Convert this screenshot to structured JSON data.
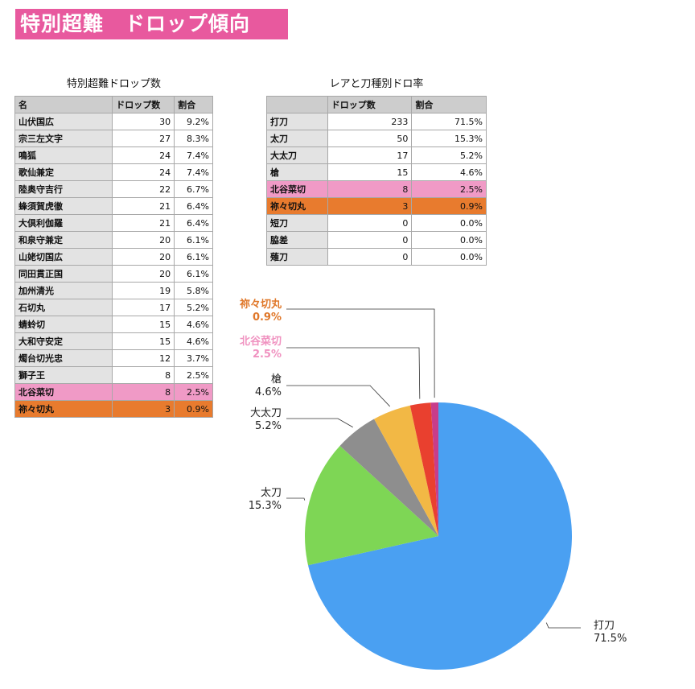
{
  "title": "特別超難　ドロップ傾向",
  "table1": {
    "caption": "特別超難ドロップ数",
    "headers": [
      "名",
      "ドロップ数",
      "割合"
    ],
    "rows": [
      {
        "name": "山伏国広",
        "count": "30",
        "pct": "9.2%"
      },
      {
        "name": "宗三左文字",
        "count": "27",
        "pct": "8.3%"
      },
      {
        "name": "鳴狐",
        "count": "24",
        "pct": "7.4%"
      },
      {
        "name": "歌仙兼定",
        "count": "24",
        "pct": "7.4%"
      },
      {
        "name": "陸奥守吉行",
        "count": "22",
        "pct": "6.7%"
      },
      {
        "name": "蜂須賀虎徹",
        "count": "21",
        "pct": "6.4%"
      },
      {
        "name": "大倶利伽羅",
        "count": "21",
        "pct": "6.4%"
      },
      {
        "name": "和泉守兼定",
        "count": "20",
        "pct": "6.1%"
      },
      {
        "name": "山姥切国広",
        "count": "20",
        "pct": "6.1%"
      },
      {
        "name": "同田貫正国",
        "count": "20",
        "pct": "6.1%"
      },
      {
        "name": "加州清光",
        "count": "19",
        "pct": "5.8%"
      },
      {
        "name": "石切丸",
        "count": "17",
        "pct": "5.2%"
      },
      {
        "name": "蜻蛉切",
        "count": "15",
        "pct": "4.6%"
      },
      {
        "name": "大和守安定",
        "count": "15",
        "pct": "4.6%"
      },
      {
        "name": "燭台切光忠",
        "count": "12",
        "pct": "3.7%"
      },
      {
        "name": "獅子王",
        "count": "8",
        "pct": "2.5%"
      },
      {
        "name": "北谷菜切",
        "count": "8",
        "pct": "2.5%",
        "highlight": "pink"
      },
      {
        "name": "祢々切丸",
        "count": "3",
        "pct": "0.9%",
        "highlight": "orange"
      }
    ]
  },
  "table2": {
    "caption": "レアと刀種別ドロ率",
    "headers": [
      "",
      "ドロップ数",
      "割合"
    ],
    "rows": [
      {
        "name": "打刀",
        "count": "233",
        "pct": "71.5%"
      },
      {
        "name": "太刀",
        "count": "50",
        "pct": "15.3%"
      },
      {
        "name": "大太刀",
        "count": "17",
        "pct": "5.2%"
      },
      {
        "name": "槍",
        "count": "15",
        "pct": "4.6%"
      },
      {
        "name": "北谷菜切",
        "count": "8",
        "pct": "2.5%",
        "highlight": "pink"
      },
      {
        "name": "祢々切丸",
        "count": "3",
        "pct": "0.9%",
        "highlight": "orange"
      },
      {
        "name": "短刀",
        "count": "0",
        "pct": "0.0%"
      },
      {
        "name": "脇差",
        "count": "0",
        "pct": "0.0%"
      },
      {
        "name": "薙刀",
        "count": "0",
        "pct": "0.0%"
      }
    ]
  },
  "chart_data": {
    "type": "pie",
    "slices": [
      {
        "label": "打刀",
        "value": 71.5,
        "pct_label": "71.5%",
        "color": "#4aa0f2"
      },
      {
        "label": "太刀",
        "value": 15.3,
        "pct_label": "15.3%",
        "color": "#7ed655"
      },
      {
        "label": "大太刀",
        "value": 5.2,
        "pct_label": "5.2%",
        "color": "#8e8e8e"
      },
      {
        "label": "槍",
        "value": 4.6,
        "pct_label": "4.6%",
        "color": "#f2b845"
      },
      {
        "label": "北谷菜切",
        "value": 2.5,
        "pct_label": "2.5%",
        "color": "#e9402f",
        "label_color": "#f092c0"
      },
      {
        "label": "祢々切丸",
        "value": 0.9,
        "pct_label": "0.9%",
        "color": "#c83d8a",
        "label_color": "#e0782a"
      }
    ]
  }
}
